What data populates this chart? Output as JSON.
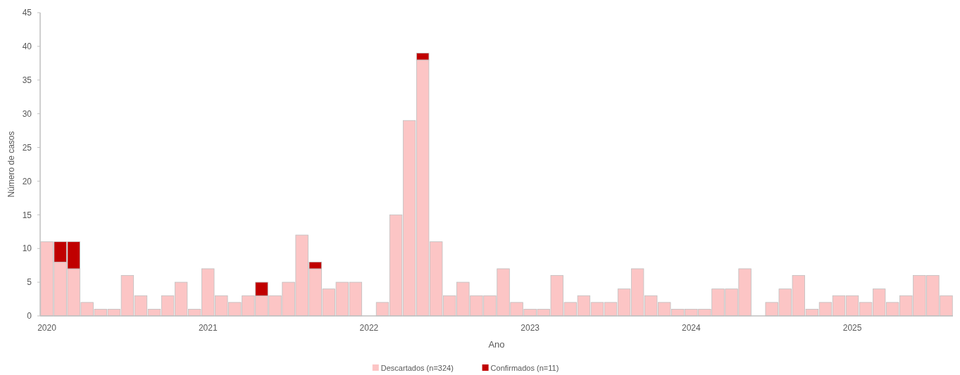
{
  "chart_data": {
    "type": "bar",
    "stacked": true,
    "xlabel": "Ano",
    "ylabel": "Número de casos",
    "categories": [
      "2020",
      null,
      null,
      null,
      null,
      null,
      null,
      null,
      null,
      null,
      null,
      null,
      "2021",
      null,
      null,
      null,
      null,
      null,
      null,
      null,
      null,
      null,
      null,
      null,
      "2022",
      null,
      null,
      null,
      null,
      null,
      null,
      null,
      null,
      null,
      null,
      null,
      "2023",
      null,
      null,
      null,
      null,
      null,
      null,
      null,
      null,
      null,
      null,
      null,
      "2024",
      null,
      null,
      null,
      null,
      null,
      null,
      null,
      null,
      null,
      null,
      null,
      "2025",
      null,
      null,
      null,
      null,
      null,
      null,
      null
    ],
    "series": [
      {
        "name": "Descartados (n=324)",
        "color": "#fcc5c5",
        "values": [
          11,
          8,
          7,
          2,
          1,
          1,
          6,
          3,
          1,
          3,
          5,
          1,
          7,
          3,
          2,
          3,
          3,
          3,
          5,
          12,
          7,
          4,
          5,
          5,
          0,
          2,
          15,
          29,
          38,
          11,
          3,
          5,
          3,
          3,
          7,
          2,
          1,
          1,
          6,
          2,
          3,
          2,
          2,
          4,
          7,
          3,
          2,
          1,
          1,
          1,
          4,
          4,
          7,
          0,
          2,
          4,
          6,
          1,
          2,
          3,
          3,
          2,
          4,
          2,
          3,
          6,
          6,
          3
        ]
      },
      {
        "name": "Confirmados (n=11)",
        "color": "#c00000",
        "values": [
          0,
          3,
          4,
          0,
          0,
          0,
          0,
          0,
          0,
          0,
          0,
          0,
          0,
          0,
          0,
          0,
          2,
          0,
          0,
          0,
          1,
          0,
          0,
          0,
          0,
          0,
          0,
          0,
          1,
          0,
          0,
          0,
          0,
          0,
          0,
          0,
          0,
          0,
          0,
          0,
          0,
          0,
          0,
          0,
          0,
          0,
          0,
          0,
          0,
          0,
          0,
          0,
          0,
          0,
          0,
          0,
          0,
          0,
          0,
          0,
          0,
          0,
          0,
          0,
          0,
          0,
          0,
          0
        ]
      }
    ],
    "ylim": [
      0,
      45
    ],
    "yticks": [
      0,
      5,
      10,
      15,
      20,
      25,
      30,
      35,
      40,
      45
    ],
    "grid": false,
    "legend": "bottom"
  }
}
